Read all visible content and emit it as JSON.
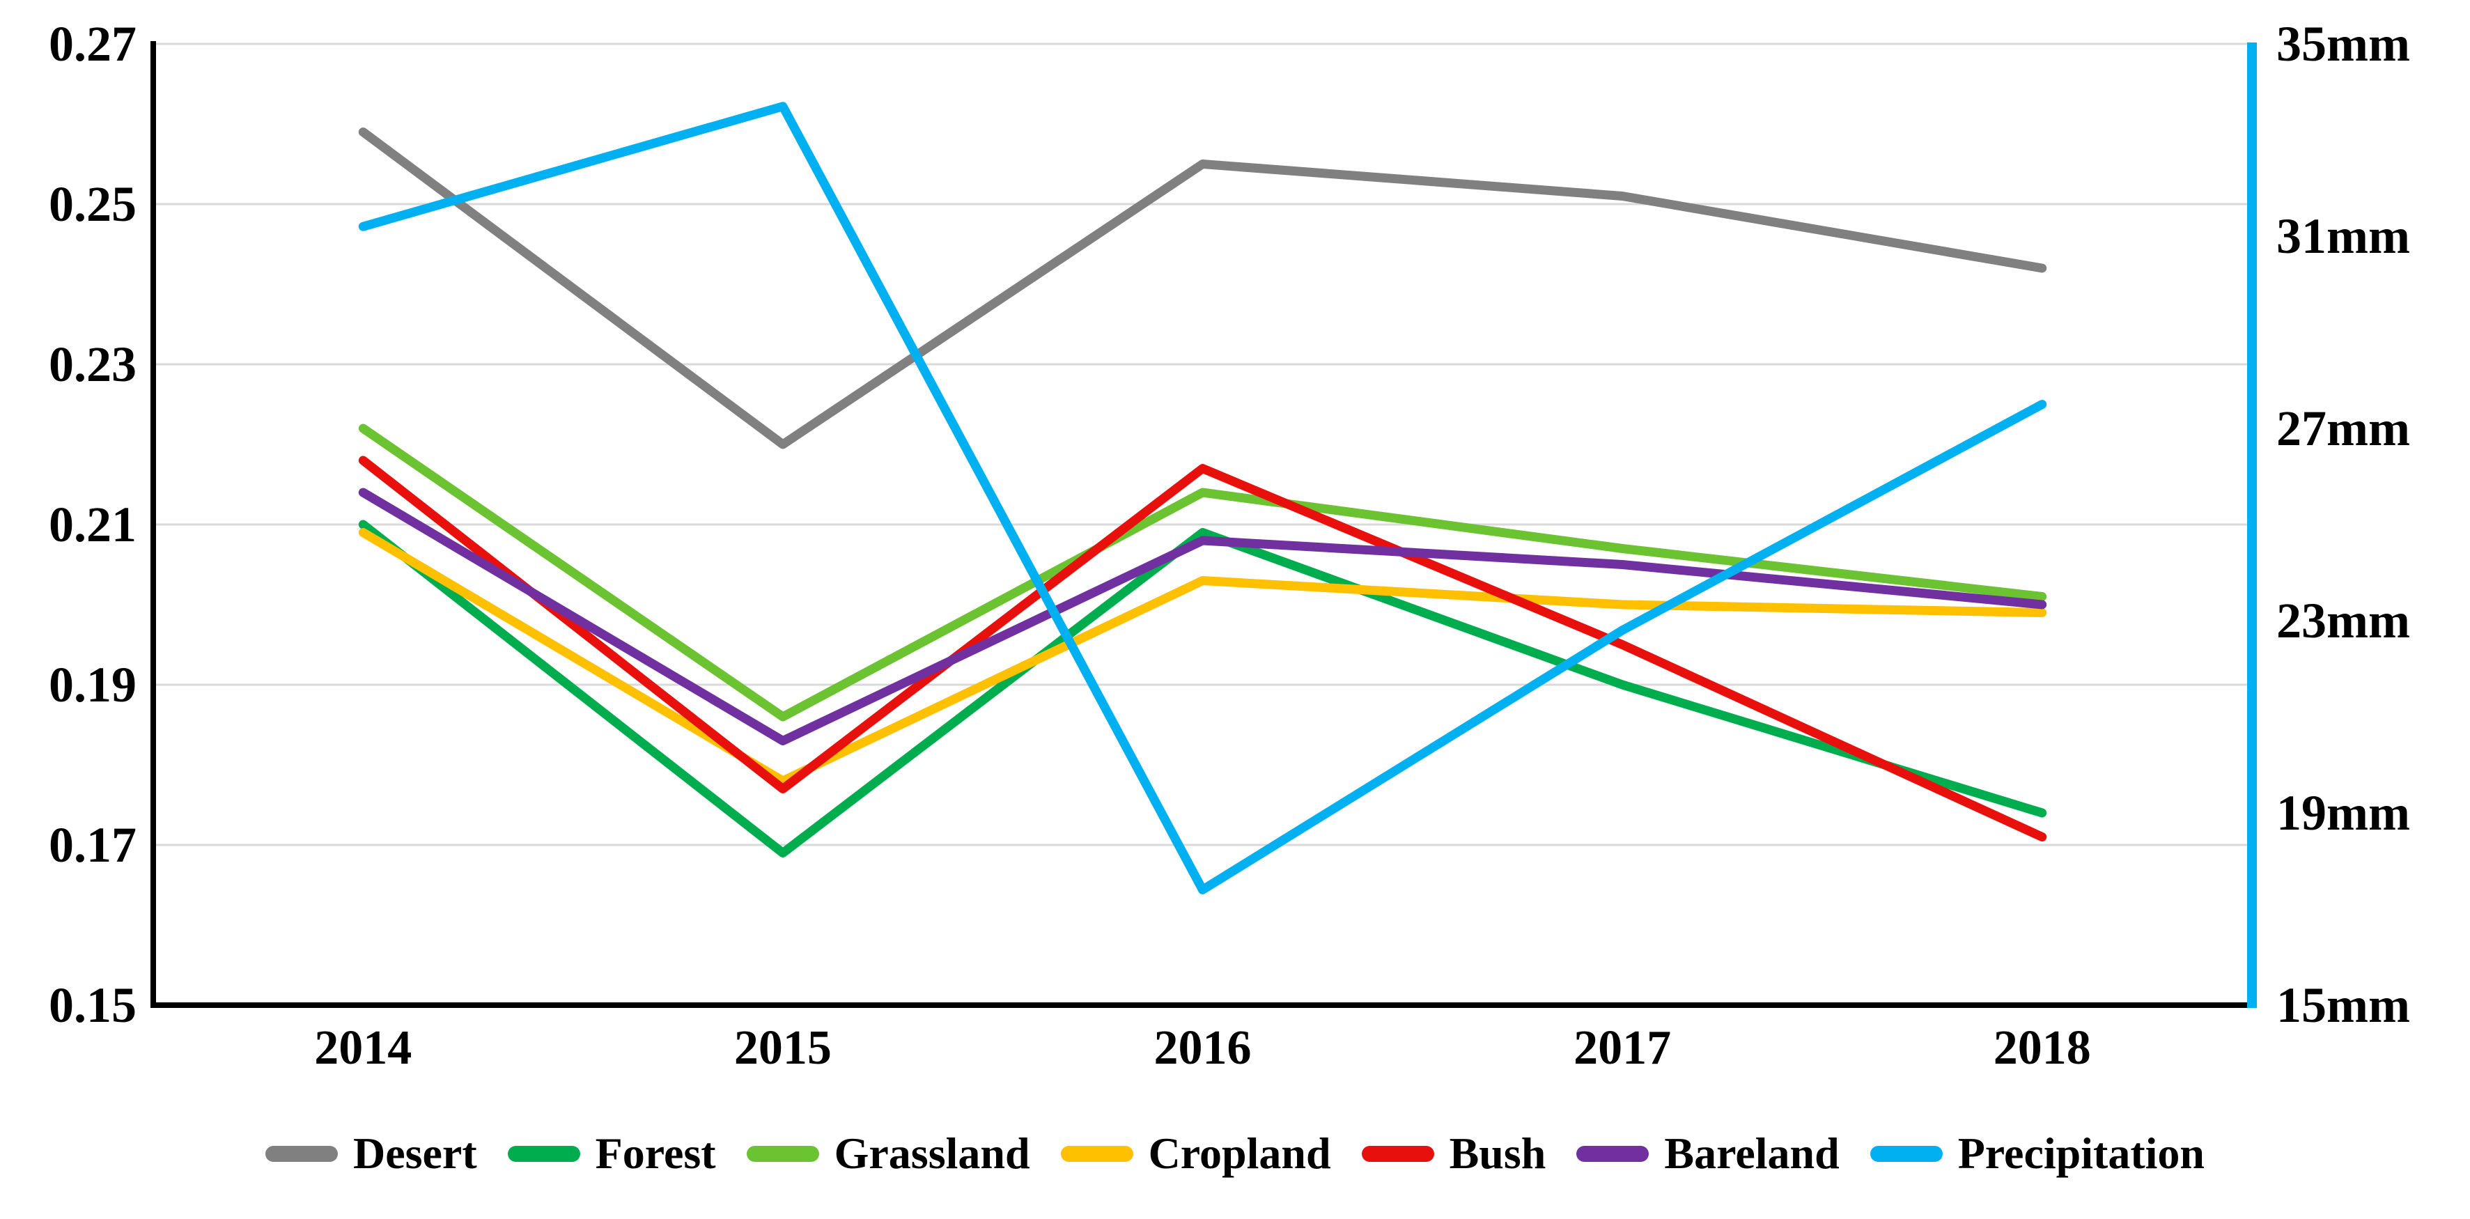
{
  "figure": {
    "background": "#ffffff"
  },
  "chart_data": {
    "type": "line",
    "categories": [
      "2014",
      "2015",
      "2016",
      "2017",
      "2018"
    ],
    "left_axis": {
      "min": 0.15,
      "max": 0.27,
      "tick_labels": [
        "0.27",
        "0.25",
        "0.23",
        "0.21",
        "0.19",
        "0.17",
        "0.15"
      ],
      "tick_values": [
        0.27,
        0.25,
        0.23,
        0.21,
        0.19,
        0.17,
        0.15
      ],
      "grid": true
    },
    "right_axis": {
      "min": 15,
      "max": 35,
      "unit": "mm",
      "tick_labels": [
        "35mm",
        "31mm",
        "27mm",
        "23mm",
        "19mm",
        "15mm"
      ],
      "tick_values": [
        35,
        31,
        27,
        23,
        19,
        15
      ],
      "spine_color": "#00B0F0"
    },
    "series": [
      {
        "name": "Desert",
        "color": "#808080",
        "axis": "left",
        "values": [
          0.259,
          0.22,
          0.255,
          0.251,
          0.242
        ]
      },
      {
        "name": "Forest",
        "color": "#00AD4E",
        "axis": "left",
        "values": [
          0.21,
          0.169,
          0.209,
          0.19,
          0.174
        ]
      },
      {
        "name": "Grassland",
        "color": "#6BC331",
        "axis": "left",
        "values": [
          0.222,
          0.186,
          0.214,
          0.207,
          0.201
        ]
      },
      {
        "name": "Cropland",
        "color": "#FFC000",
        "axis": "left",
        "values": [
          0.209,
          0.178,
          0.203,
          0.2,
          0.199
        ]
      },
      {
        "name": "Bush",
        "color": "#E8100C",
        "axis": "left",
        "values": [
          0.218,
          0.177,
          0.217,
          0.195,
          0.171
        ]
      },
      {
        "name": "Bareland",
        "color": "#7030A0",
        "axis": "left",
        "values": [
          0.214,
          0.183,
          0.208,
          0.205,
          0.2
        ]
      },
      {
        "name": "Precipitation",
        "color": "#00B0F0",
        "axis": "right",
        "values": [
          31.2,
          33.7,
          17.4,
          22.8,
          27.5
        ]
      }
    ],
    "legend": {
      "position": "bottom",
      "labels": [
        "Desert",
        "Forest",
        "Grassland",
        "Cropland",
        "Bush",
        "Bareland",
        "Precipitation"
      ]
    }
  },
  "style": {
    "gridline_color": "#D9D9D9",
    "axis_color": "#000000",
    "text_color": "#000000"
  }
}
